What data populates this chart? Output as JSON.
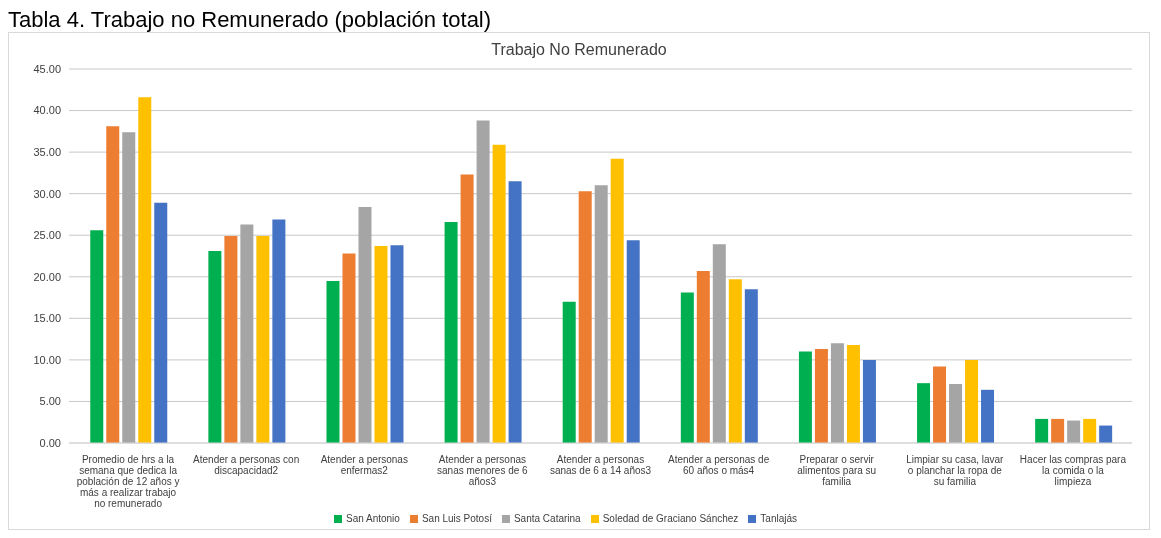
{
  "chart_data": {
    "type": "bar",
    "title": "Trabajo No Remunerado",
    "annotations": [
      "Tabla 4. Trabajo no Remunerado (población total)"
    ],
    "categories": [
      "Promedio de hrs a la semana que dedica la población de 12 años y más a realizar trabajo no remunerado",
      "Atender a personas con discapacidad2",
      "Atender a personas enfermas2",
      "Atender a personas sanas menores de 6 años3",
      "Atender a personas sanas de 6 a 14 años3",
      "Atender a personas de 60 años o más4",
      "Preparar o servir alimentos para su familia",
      "Limpiar su casa, lavar o planchar la ropa de su familia",
      "Hacer las compras para la comida o la limpieza"
    ],
    "series": [
      {
        "name": "San Antonio",
        "color": "#00b050",
        "values": [
          25.6,
          23.1,
          19.5,
          26.6,
          17.0,
          18.1,
          11.0,
          7.2,
          2.9
        ]
      },
      {
        "name": "San Luis Potosí",
        "color": "#ed7d31",
        "values": [
          38.1,
          24.9,
          22.8,
          32.3,
          30.3,
          20.7,
          11.3,
          9.2,
          2.9
        ]
      },
      {
        "name": "Santa Catarina",
        "color": "#a5a5a5",
        "values": [
          37.4,
          26.3,
          28.4,
          38.8,
          31.0,
          23.9,
          12.0,
          7.1,
          2.7
        ]
      },
      {
        "name": "Soledad de Graciano Sánchez",
        "color": "#ffc000",
        "values": [
          41.6,
          24.9,
          23.7,
          35.9,
          34.2,
          19.7,
          11.8,
          10.0,
          2.9
        ]
      },
      {
        "name": "Tanlajás",
        "color": "#4472c4",
        "values": [
          28.9,
          26.9,
          23.8,
          31.5,
          24.4,
          18.5,
          10.0,
          6.4,
          2.1
        ]
      }
    ],
    "ylim": [
      0,
      45
    ],
    "yticks": [
      {
        "value": 0,
        "label": "0.00"
      },
      {
        "value": 5,
        "label": "5.00"
      },
      {
        "value": 10,
        "label": "10.00"
      },
      {
        "value": 15,
        "label": "15.00"
      },
      {
        "value": 20,
        "label": "20.00"
      },
      {
        "value": 25,
        "label": "25.00"
      },
      {
        "value": 30,
        "label": "30.00"
      },
      {
        "value": 35,
        "label": "35.00"
      },
      {
        "value": 40,
        "label": "40.00"
      },
      {
        "value": 45,
        "label": "45.00"
      }
    ],
    "grid": "y",
    "legend": "bottom"
  }
}
